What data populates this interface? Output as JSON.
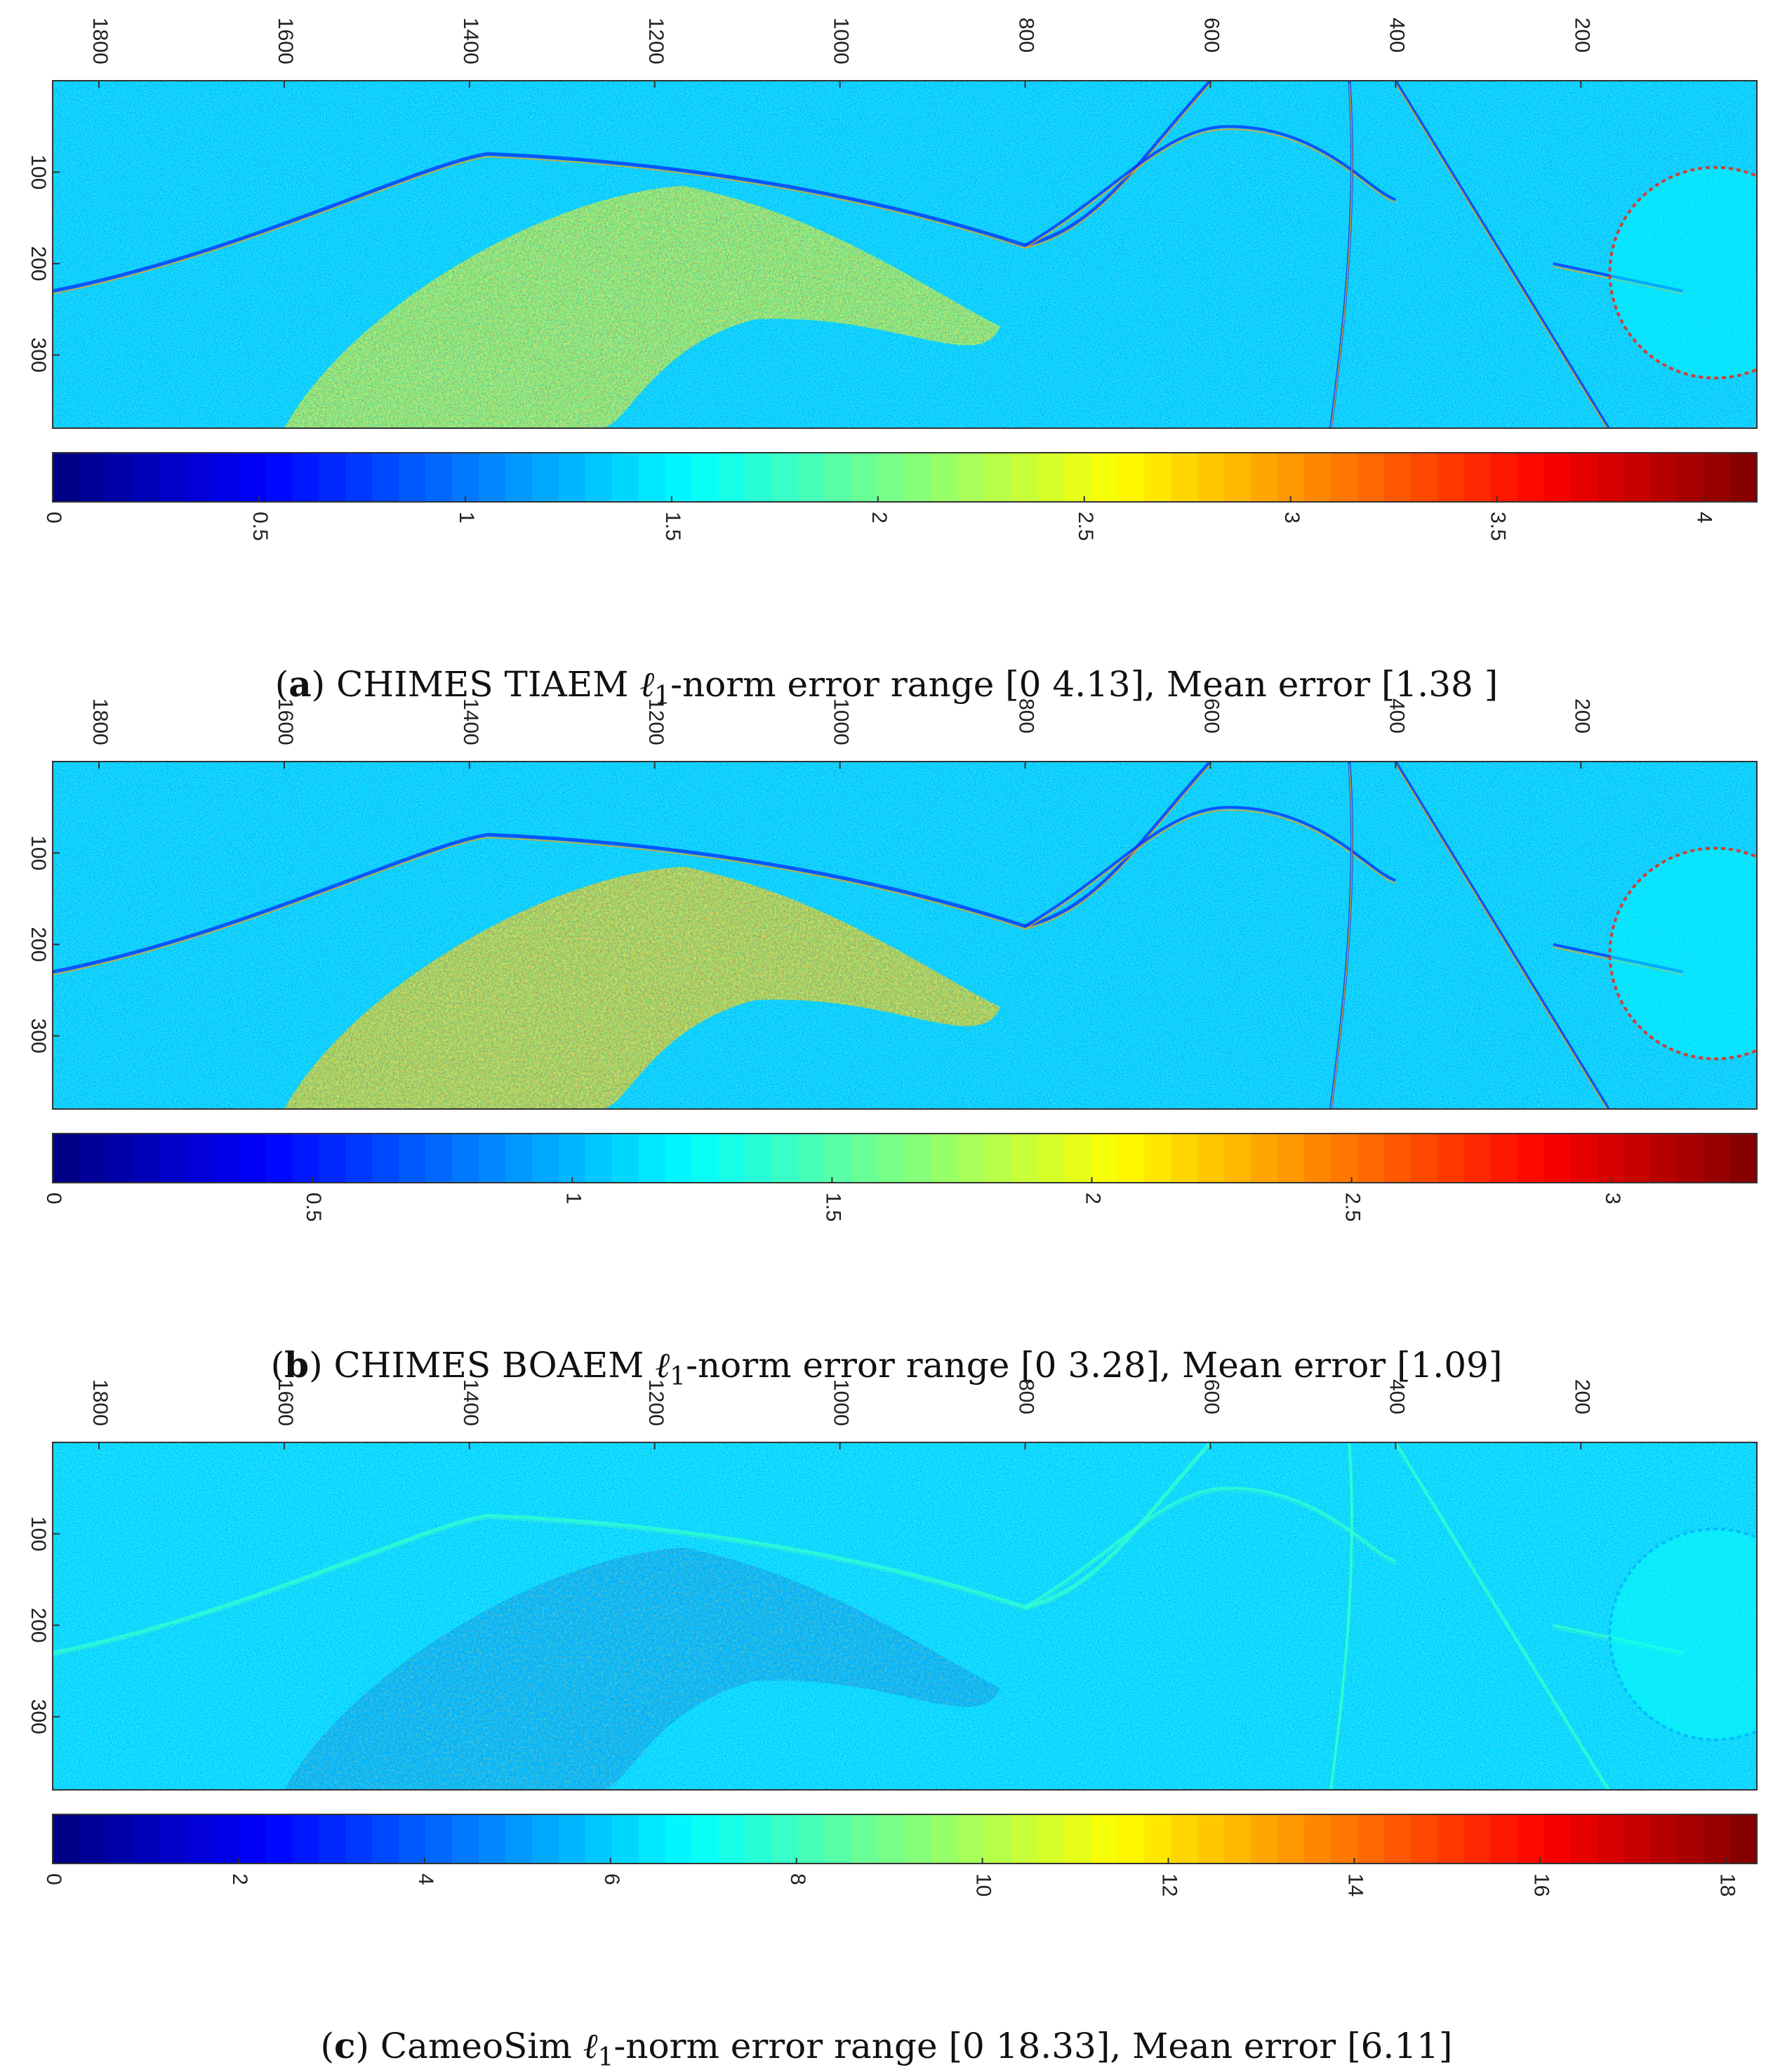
{
  "chart_data": [
    {
      "type": "heatmap",
      "panel": "a",
      "title": "CHIMES TIAEM ℓ1-norm error range [0 4.13], Mean error [1.38 ]",
      "caption_label": "a",
      "caption_prefix": "CHIMES TIAEM ",
      "caption_suffix": "-norm error range [0 4.13], Mean error [1.38 ]",
      "x_ticks": [
        "1800",
        "1600",
        "1400",
        "1200",
        "1000",
        "800",
        "600",
        "400",
        "200"
      ],
      "x_tick_values": [
        1800,
        1600,
        1400,
        1200,
        1000,
        800,
        600,
        400,
        200
      ],
      "xlim": [
        1850,
        10
      ],
      "y_ticks": [
        "100",
        "200",
        "300"
      ],
      "y_tick_values": [
        100,
        200,
        300
      ],
      "ylim": [
        0,
        380
      ],
      "colormap": "jet",
      "colorbar_range": [
        0,
        4.13
      ],
      "colorbar_ticks": [
        "0",
        "0.5",
        "1",
        "1.5",
        "2",
        "2.5",
        "3",
        "3.5",
        "4"
      ],
      "colorbar_tick_values": [
        0,
        0.5,
        1,
        1.5,
        2,
        2.5,
        3,
        3.5,
        4
      ],
      "error_range": [
        0,
        4.13
      ],
      "mean_error": 1.38,
      "base_level": 0.33,
      "hot_level": 0.62
    },
    {
      "type": "heatmap",
      "panel": "b",
      "title": "CHIMES BOAEM ℓ1-norm error range [0 3.28], Mean error [1.09]",
      "caption_label": "b",
      "caption_prefix": "CHIMES BOAEM ",
      "caption_suffix": "-norm error range [0 3.28], Mean error [1.09]",
      "x_ticks": [
        "1800",
        "1600",
        "1400",
        "1200",
        "1000",
        "800",
        "600",
        "400",
        "200"
      ],
      "x_tick_values": [
        1800,
        1600,
        1400,
        1200,
        1000,
        800,
        600,
        400,
        200
      ],
      "xlim": [
        1850,
        10
      ],
      "y_ticks": [
        "100",
        "200",
        "300"
      ],
      "y_tick_values": [
        100,
        200,
        300
      ],
      "ylim": [
        0,
        380
      ],
      "colormap": "jet",
      "colorbar_range": [
        0,
        3.28
      ],
      "colorbar_ticks": [
        "0",
        "0.5",
        "1",
        "1.5",
        "2",
        "2.5",
        "3"
      ],
      "colorbar_tick_values": [
        0,
        0.5,
        1,
        1.5,
        2,
        2.5,
        3
      ],
      "error_range": [
        0,
        3.28
      ],
      "mean_error": 1.09,
      "base_level": 0.33,
      "hot_level": 0.72
    },
    {
      "type": "heatmap",
      "panel": "c",
      "title": "CameoSim ℓ1-norm error range [0 18.33], Mean error [6.11]",
      "caption_label": "c",
      "caption_prefix": "CameoSim ",
      "caption_suffix": "-norm error range [0 18.33], Mean error [6.11]",
      "x_ticks": [
        "1800",
        "1600",
        "1400",
        "1200",
        "1000",
        "800",
        "600",
        "400",
        "200"
      ],
      "x_tick_values": [
        1800,
        1600,
        1400,
        1200,
        1000,
        800,
        600,
        400,
        200
      ],
      "xlim": [
        1850,
        10
      ],
      "y_ticks": [
        "100",
        "200",
        "300"
      ],
      "y_tick_values": [
        100,
        200,
        300
      ],
      "ylim": [
        0,
        380
      ],
      "colormap": "jet",
      "colorbar_range": [
        0,
        18.33
      ],
      "colorbar_ticks": [
        "0",
        "2",
        "4",
        "6",
        "8",
        "10",
        "12",
        "14",
        "16",
        "18"
      ],
      "colorbar_tick_values": [
        0,
        2,
        4,
        6,
        8,
        10,
        12,
        14,
        16,
        18
      ],
      "error_range": [
        0,
        18.33
      ],
      "mean_error": 6.11,
      "base_level": 0.34,
      "hot_level": 0.28
    }
  ]
}
